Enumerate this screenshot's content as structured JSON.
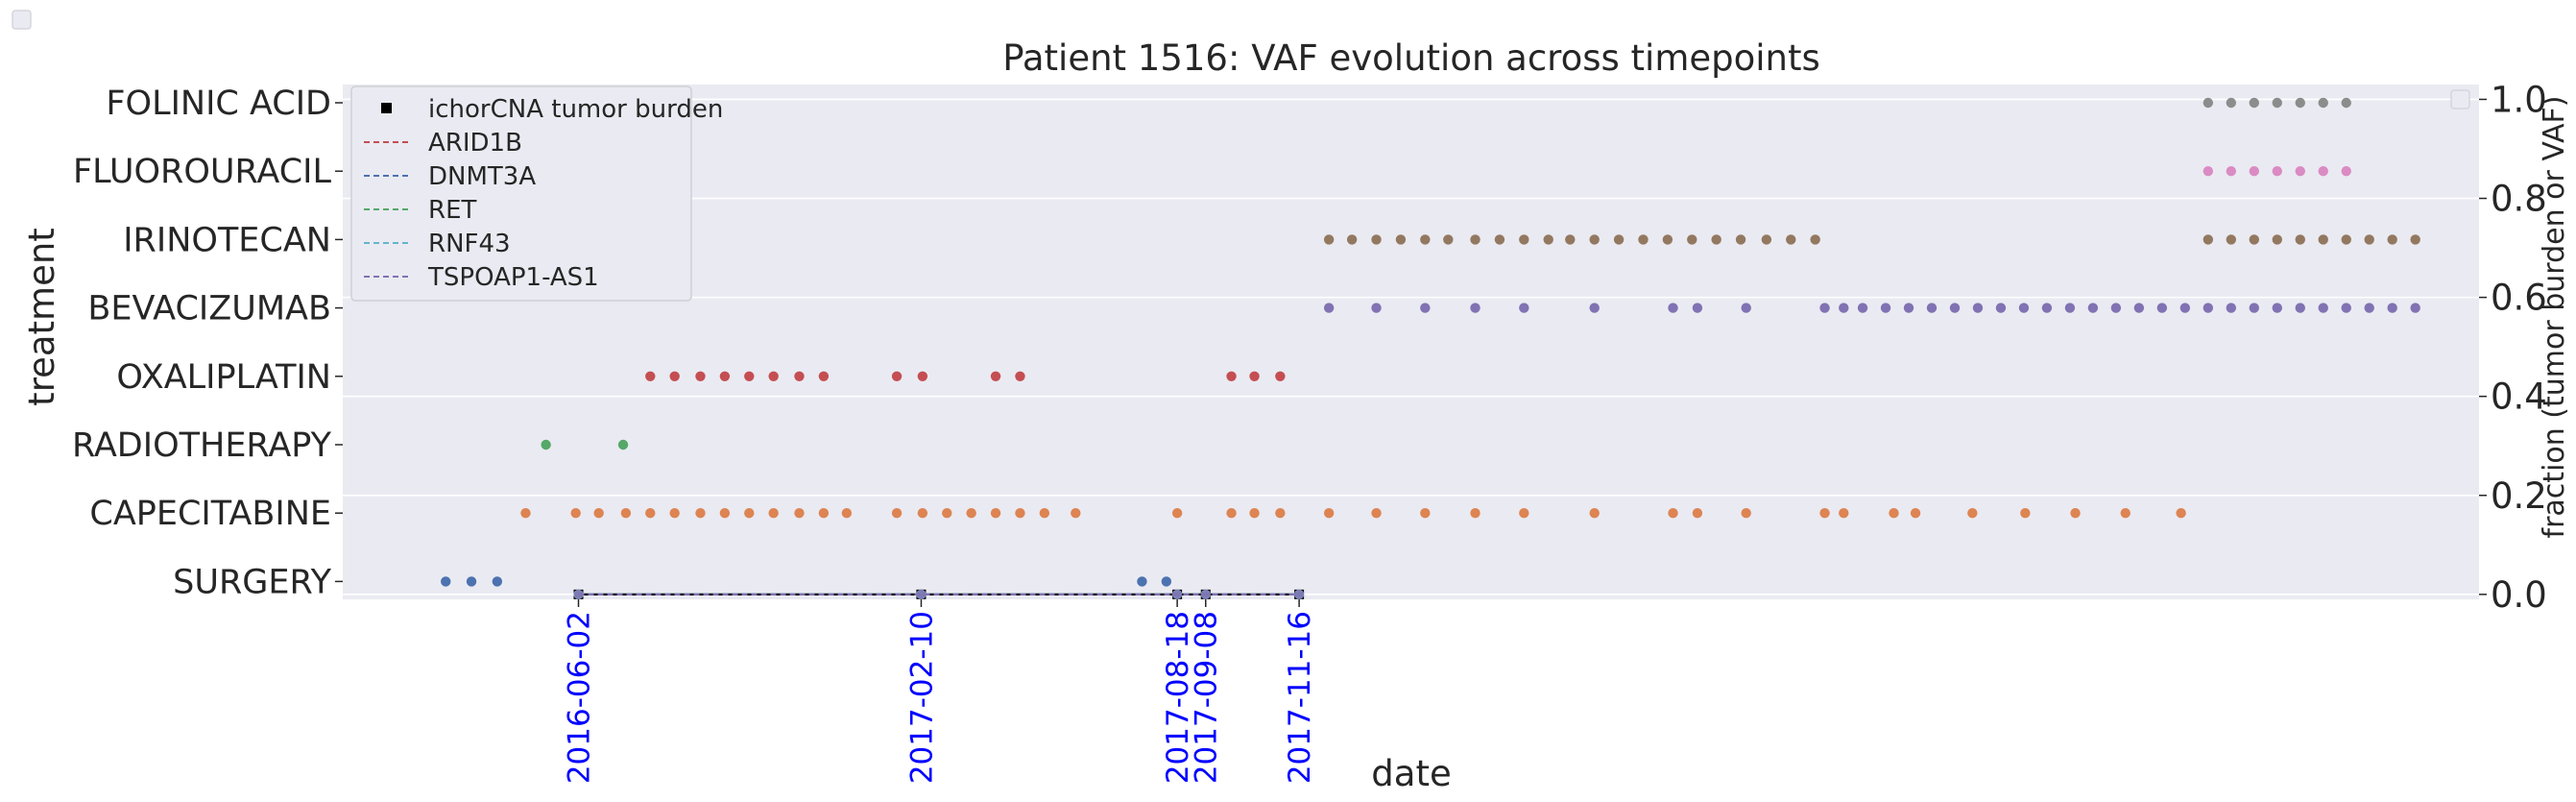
{
  "chart_data": {
    "type": "scatter",
    "title": "Patient 1516: VAF evolution across timepoints",
    "xlabel": "date",
    "ylabel_left": "treatment",
    "ylabel_right": "fraction (tumor burden or VAF)",
    "treatments": [
      "SURGERY",
      "CAPECITABINE",
      "RADIOTHERAPY",
      "OXALIPLATIN",
      "BEVACIZUMAB",
      "IRINOTECAN",
      "FLUOROURACIL",
      "FOLINIC ACID"
    ],
    "treatment_colors": {
      "SURGERY": "#4c72b0",
      "CAPECITABINE": "#dd8452",
      "RADIOTHERAPY": "#55a868",
      "OXALIPLATIN": "#c44e52",
      "BEVACIZUMAB": "#8172b3",
      "IRINOTECAN": "#937860",
      "FLUOROURACIL": "#da8bc3",
      "FOLINIC ACID": "#8c8c8c"
    },
    "x_range": [
      "2015-12-11",
      "2020-04-05"
    ],
    "treatment_events": {
      "SURGERY": [
        "2016-02-25",
        "2016-03-15",
        "2016-04-03",
        "2017-07-23",
        "2017-08-10"
      ],
      "CAPECITABINE": [
        "2016-04-24",
        "2016-05-31",
        "2016-06-17",
        "2016-07-07",
        "2016-07-25",
        "2016-08-12",
        "2016-08-31",
        "2016-09-18",
        "2016-10-06",
        "2016-10-24",
        "2016-11-12",
        "2016-11-30",
        "2016-12-17",
        "2017-01-23",
        "2017-02-11",
        "2017-03-01",
        "2017-03-19",
        "2017-04-06",
        "2017-04-24",
        "2017-05-12",
        "2017-06-04",
        "2017-08-18",
        "2017-09-27",
        "2017-10-14",
        "2017-11-02",
        "2017-12-08",
        "2018-01-12",
        "2018-02-17",
        "2018-03-26",
        "2018-05-01",
        "2018-06-22",
        "2018-08-19",
        "2018-09-06",
        "2018-10-12",
        "2018-12-09",
        "2018-12-23",
        "2019-01-29",
        "2019-02-14",
        "2019-03-28",
        "2019-05-06",
        "2019-06-12",
        "2019-07-19",
        "2019-08-29"
      ],
      "RADIOTHERAPY": [
        "2016-05-09",
        "2016-07-05"
      ],
      "OXALIPLATIN": [
        "2016-07-25",
        "2016-08-12",
        "2016-08-31",
        "2016-09-18",
        "2016-10-06",
        "2016-10-24",
        "2016-11-12",
        "2016-11-30",
        "2017-01-23",
        "2017-02-11",
        "2017-04-06",
        "2017-04-24",
        "2017-09-27",
        "2017-10-14",
        "2017-11-02"
      ],
      "BEVACIZUMAB": [
        "2017-12-08",
        "2018-01-12",
        "2018-02-17",
        "2018-03-26",
        "2018-05-01",
        "2018-06-22",
        "2018-08-19",
        "2018-09-06",
        "2018-10-12",
        "2018-12-09",
        "2018-12-23",
        "2019-01-06",
        "2019-01-23",
        "2019-02-09",
        "2019-02-26",
        "2019-03-15",
        "2019-04-01",
        "2019-04-18",
        "2019-05-05",
        "2019-05-22",
        "2019-06-08",
        "2019-06-25",
        "2019-07-12",
        "2019-07-29",
        "2019-08-15",
        "2019-09-01",
        "2019-09-18",
        "2019-10-05",
        "2019-10-22",
        "2019-11-08",
        "2019-11-25",
        "2019-12-12",
        "2019-12-29",
        "2020-01-15",
        "2020-02-01",
        "2020-02-18"
      ],
      "IRINOTECAN": [
        "2017-12-08",
        "2017-12-25",
        "2018-01-12",
        "2018-01-30",
        "2018-02-17",
        "2018-03-06",
        "2018-03-26",
        "2018-04-13",
        "2018-05-01",
        "2018-05-19",
        "2018-06-04",
        "2018-06-22",
        "2018-07-10",
        "2018-07-28",
        "2018-08-15",
        "2018-09-02",
        "2018-09-20",
        "2018-10-08",
        "2018-10-27",
        "2018-11-14",
        "2018-12-02",
        "2019-09-18",
        "2019-10-05",
        "2019-10-22",
        "2019-11-08",
        "2019-11-25",
        "2019-12-12",
        "2019-12-29",
        "2020-01-15",
        "2020-02-01",
        "2020-02-18"
      ],
      "FLUOROURACIL": [
        "2019-09-18",
        "2019-10-05",
        "2019-10-22",
        "2019-11-08",
        "2019-11-25",
        "2019-12-12",
        "2019-12-29"
      ],
      "FOLINIC ACID": [
        "2019-09-18",
        "2019-10-05",
        "2019-10-22",
        "2019-11-08",
        "2019-11-25",
        "2019-12-12",
        "2019-12-29"
      ]
    },
    "timepoints": [
      "2016-06-02",
      "2017-02-10",
      "2017-08-18",
      "2017-09-08",
      "2017-11-16"
    ],
    "timepoint_label_color": "#0000ff",
    "y_right_ticks": [
      0.0,
      0.2,
      0.4,
      0.6,
      0.8,
      1.0
    ],
    "y_right_ticklabels": [
      "0.0",
      "0.2",
      "0.4",
      "0.6",
      "0.8",
      "1.0"
    ],
    "y_right_range": [
      -0.01,
      1.03
    ],
    "legend_position": "upper-left",
    "series": [
      {
        "name": "ichorCNA tumor burden",
        "marker": "square",
        "color": "#000000",
        "x": [
          "2016-06-02",
          "2017-02-10",
          "2017-08-18",
          "2017-09-08",
          "2017-11-16"
        ],
        "values": [
          0.0,
          0.0,
          0.0,
          0.0,
          0.0
        ]
      },
      {
        "name": "ARID1B",
        "style": "dashed",
        "color": "#c44e52",
        "x": [
          "2016-06-02",
          "2017-02-10",
          "2017-08-18",
          "2017-09-08",
          "2017-11-16"
        ],
        "values": [
          0.0,
          0.0,
          0.0,
          0.0,
          0.0
        ]
      },
      {
        "name": "DNMT3A",
        "style": "dashed",
        "color": "#4c72b0",
        "x": [
          "2016-06-02",
          "2017-02-10",
          "2017-08-18",
          "2017-09-08",
          "2017-11-16"
        ],
        "values": [
          0.0,
          0.0,
          0.0,
          0.0,
          0.0
        ]
      },
      {
        "name": "RET",
        "style": "dashed",
        "color": "#55a868",
        "x": [
          "2016-06-02",
          "2017-02-10",
          "2017-08-18",
          "2017-09-08",
          "2017-11-16"
        ],
        "values": [
          0.0,
          0.0,
          0.0,
          0.0,
          0.0
        ]
      },
      {
        "name": "RNF43",
        "style": "dashed",
        "color": "#64b5cd",
        "x": [
          "2016-06-02",
          "2017-02-10",
          "2017-08-18",
          "2017-09-08",
          "2017-11-16"
        ],
        "values": [
          0.0,
          0.0,
          0.0,
          0.0,
          0.0
        ]
      },
      {
        "name": "TSPOAP1-AS1",
        "style": "dashed",
        "color": "#8172b3",
        "x": [
          "2016-06-02",
          "2017-02-10",
          "2017-08-18",
          "2017-09-08",
          "2017-11-16"
        ],
        "values": [
          0.0,
          0.0,
          0.0,
          0.0,
          0.0
        ]
      }
    ]
  }
}
